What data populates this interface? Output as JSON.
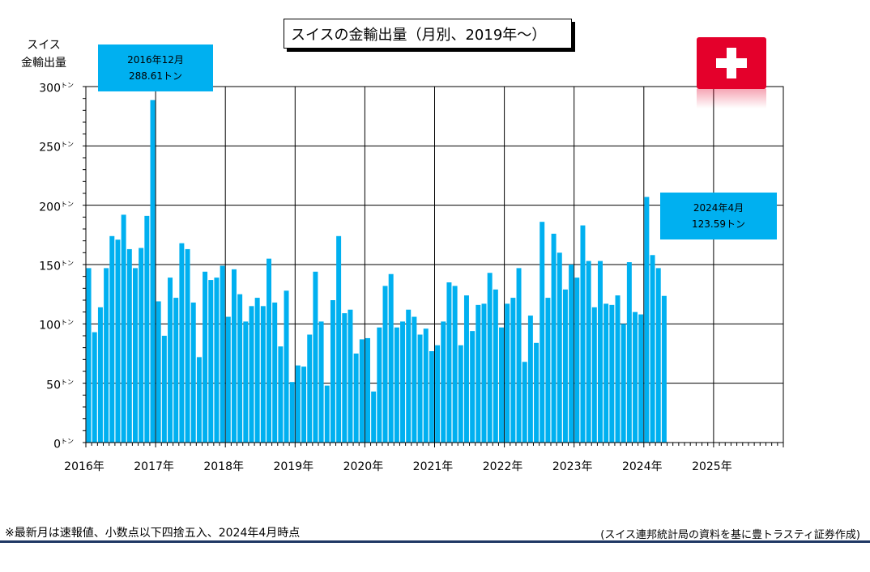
{
  "title": "スイスの金輸出量（月別、2019年～）",
  "ylabel_lines": [
    "スイス",
    "金輸出量"
  ],
  "footnote": "※最新月は速報値、小数点以下四捨五入、2024年4月時点",
  "source": "(スイス連邦統計局の資料を基に豊トラスティ証券作成)",
  "callouts": [
    {
      "line1": "2016年12月",
      "line2": "288.61トン"
    },
    {
      "line1": "2024年4月",
      "line2": "123.59トン"
    }
  ],
  "flag_icon": "swiss-flag-icon",
  "colors": {
    "bar": "#00b0f0",
    "callout": "#00b0f0",
    "flag": "#e4002b",
    "rule": "#1f3864"
  },
  "chart_data": {
    "type": "bar",
    "ylim": [
      0,
      300
    ],
    "yticks": [
      0,
      50,
      100,
      150,
      200,
      250,
      300
    ],
    "ytick_unit": "トン",
    "grid": true,
    "xticks": [
      "2016年",
      "2017年",
      "2018年",
      "2019年",
      "2020年",
      "2021年",
      "2022年",
      "2023年",
      "2024年",
      "2025年"
    ],
    "start": "2016-01",
    "values": [
      147,
      93,
      114,
      147,
      174,
      171,
      192,
      163,
      147,
      164,
      191,
      288.61,
      119,
      90,
      139,
      122,
      168,
      163,
      118,
      72,
      144,
      137,
      139,
      149,
      106,
      146,
      125,
      102,
      115,
      122,
      115,
      155,
      118,
      81,
      128,
      51,
      65,
      64,
      91,
      144,
      102,
      48,
      120,
      174,
      109,
      112,
      75,
      87,
      88,
      43,
      97,
      132,
      142,
      97,
      102,
      112,
      106,
      91,
      96,
      77,
      82,
      102,
      135,
      132,
      82,
      124,
      94,
      116,
      117,
      143,
      129,
      97,
      117,
      122,
      147,
      68,
      107,
      84,
      186,
      122,
      176,
      160,
      129,
      150,
      139,
      183,
      153,
      114,
      153,
      117,
      116,
      124,
      100,
      152,
      110,
      108,
      207,
      158,
      147,
      123.59
    ]
  }
}
